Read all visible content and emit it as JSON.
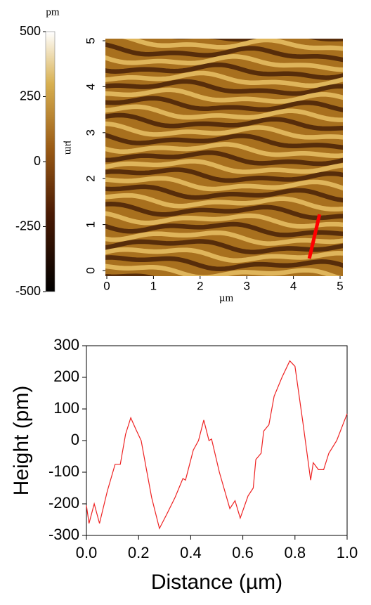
{
  "chart_data": [
    {
      "type": "heatmap",
      "colorbar": {
        "unit": "pm",
        "lim": [
          -500,
          500
        ],
        "ticks": [
          500,
          250,
          0,
          -250,
          -500
        ]
      },
      "xlabel": "µm",
      "ylabel": "µm",
      "xlim": [
        0,
        5
      ],
      "ylim": [
        0,
        5
      ],
      "xticks": [
        0,
        1,
        2,
        3,
        4,
        5
      ],
      "yticks": [
        0,
        1,
        2,
        3,
        4,
        5
      ],
      "profile_line": {
        "color": "#ff0000",
        "x": [
          4.34,
          4.56
        ],
        "y": [
          0.26,
          1.22
        ]
      }
    },
    {
      "type": "line",
      "xlabel": "Distance (µm)",
      "ylabel": "Height (pm)",
      "xlim": [
        0,
        1
      ],
      "ylim": [
        -300,
        300
      ],
      "xticks": [
        {
          "value": 0,
          "label": "0.0"
        },
        0.2,
        0.4,
        0.6,
        0.8,
        {
          "value": 1,
          "label": "1.0"
        }
      ],
      "yticks": [
        -300,
        -200,
        -100,
        0,
        100,
        200,
        300
      ],
      "x": [
        0.0,
        0.01,
        0.03,
        0.05,
        0.08,
        0.11,
        0.13,
        0.15,
        0.17,
        0.19,
        0.21,
        0.23,
        0.25,
        0.28,
        0.31,
        0.34,
        0.37,
        0.38,
        0.41,
        0.43,
        0.45,
        0.47,
        0.48,
        0.51,
        0.55,
        0.57,
        0.59,
        0.62,
        0.64,
        0.65,
        0.67,
        0.68,
        0.7,
        0.72,
        0.75,
        0.78,
        0.8,
        0.83,
        0.86,
        0.87,
        0.89,
        0.91,
        0.93,
        0.96,
        1.0
      ],
      "series": [
        {
          "color": "#ee2222",
          "values": [
            -205,
            -262,
            -200,
            -262,
            -160,
            -75,
            -75,
            20,
            72,
            35,
            0,
            -90,
            -180,
            -278,
            -230,
            -180,
            -120,
            -125,
            -30,
            0,
            65,
            0,
            5,
            -100,
            -215,
            -190,
            -245,
            -175,
            -150,
            -60,
            -40,
            30,
            50,
            140,
            200,
            252,
            235,
            60,
            -125,
            -70,
            -92,
            -92,
            -40,
            0,
            85
          ]
        }
      ]
    }
  ]
}
